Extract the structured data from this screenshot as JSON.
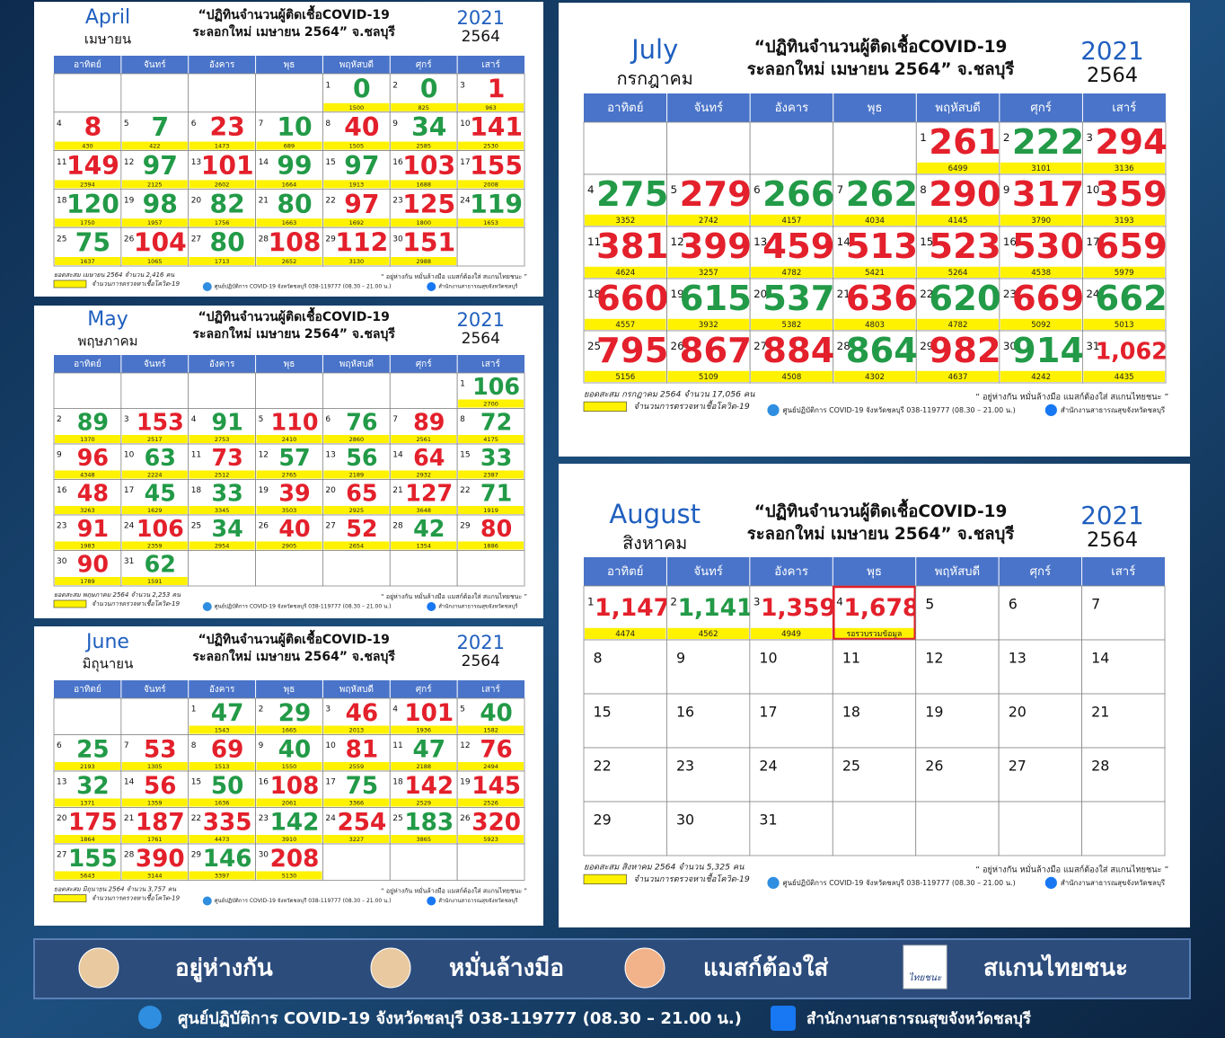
{
  "common": {
    "title_line1": "“ปฏิทินจำนวนผู้ติดเชื้อCOVID-19",
    "title_line2": "ระลอกใหม่ เมษายน 2564” จ.ชลบุรี",
    "year": "2021",
    "year_th": "2564",
    "weekdays": [
      "อาทิตย์",
      "จันทร์",
      "อังคาร",
      "พุธ",
      "พฤหัสบดี",
      "ศุกร์",
      "เสาร์"
    ],
    "legend": "จำนวนการตรวจหาเชื้อโควิด-19",
    "quote": "“ อยู่ห่างกัน หมั่นล้างมือ แมสก์ต้องใส่ สแกนไทยชนะ ”",
    "center": "ศูนย์ปฏิบัติการ COVID-19 จังหวัดชลบุรี 038-119777 (08.30 – 21.00 น.)",
    "facebook": "สำนักงานสาธารณสุขจังหวัดชลบุรี"
  },
  "calendars": [
    {
      "month_en": "April",
      "month_th": "เมษายน",
      "cumulative": "ยอดสะสม เมษายน 2564 จำนวน 2,416 คน",
      "weeks": [
        [
          null,
          null,
          null,
          null,
          [
            1,
            0,
            1500
          ],
          [
            2,
            0,
            825
          ],
          [
            3,
            1,
            963
          ]
        ],
        [
          [
            4,
            8,
            430
          ],
          [
            5,
            7,
            422
          ],
          [
            6,
            23,
            1473
          ],
          [
            7,
            10,
            689
          ],
          [
            8,
            40,
            1505
          ],
          [
            9,
            34,
            2585
          ],
          [
            10,
            141,
            2530
          ]
        ],
        [
          [
            11,
            149,
            2394
          ],
          [
            12,
            97,
            2125
          ],
          [
            13,
            101,
            2602
          ],
          [
            14,
            99,
            1664
          ],
          [
            15,
            97,
            1913
          ],
          [
            16,
            103,
            1688
          ],
          [
            17,
            155,
            2008
          ]
        ],
        [
          [
            18,
            120,
            1750
          ],
          [
            19,
            98,
            1957
          ],
          [
            20,
            82,
            1756
          ],
          [
            21,
            80,
            1663
          ],
          [
            22,
            97,
            1692
          ],
          [
            23,
            125,
            1800
          ],
          [
            24,
            119,
            1653
          ]
        ],
        [
          [
            25,
            75,
            1637
          ],
          [
            26,
            104,
            1065
          ],
          [
            27,
            80,
            1713
          ],
          [
            28,
            108,
            2652
          ],
          [
            29,
            112,
            3130
          ],
          [
            30,
            151,
            2988
          ],
          null
        ]
      ]
    },
    {
      "month_en": "May",
      "month_th": "พฤษภาคม",
      "cumulative": "ยอดสะสม พฤษภาคม 2564 จำนวน 2,253 คน",
      "weeks": [
        [
          null,
          null,
          null,
          null,
          null,
          null,
          [
            1,
            106,
            2700
          ]
        ],
        [
          [
            2,
            89,
            1370
          ],
          [
            3,
            153,
            2517
          ],
          [
            4,
            91,
            2753
          ],
          [
            5,
            110,
            2410
          ],
          [
            6,
            76,
            2860
          ],
          [
            7,
            89,
            2561
          ],
          [
            8,
            72,
            4175
          ]
        ],
        [
          [
            9,
            96,
            4348
          ],
          [
            10,
            63,
            2224
          ],
          [
            11,
            73,
            2512
          ],
          [
            12,
            57,
            2765
          ],
          [
            13,
            56,
            2189
          ],
          [
            14,
            64,
            2932
          ],
          [
            15,
            33,
            2387
          ]
        ],
        [
          [
            16,
            48,
            3263
          ],
          [
            17,
            45,
            1629
          ],
          [
            18,
            33,
            3345
          ],
          [
            19,
            39,
            3503
          ],
          [
            20,
            65,
            2925
          ],
          [
            21,
            127,
            3648
          ],
          [
            22,
            71,
            1919
          ]
        ],
        [
          [
            23,
            91,
            1983
          ],
          [
            24,
            106,
            2359
          ],
          [
            25,
            34,
            2954
          ],
          [
            26,
            40,
            2905
          ],
          [
            27,
            52,
            2654
          ],
          [
            28,
            42,
            1354
          ],
          [
            29,
            80,
            1886
          ]
        ],
        [
          [
            30,
            90,
            1789
          ],
          [
            31,
            62,
            1591
          ],
          null,
          null,
          null,
          null,
          null
        ]
      ]
    },
    {
      "month_en": "June",
      "month_th": "มิถุนายน",
      "cumulative": "ยอดสะสม มิถุนายน 2564 จำนวน 3,757 คน",
      "weeks": [
        [
          null,
          null,
          [
            1,
            47,
            1543
          ],
          [
            2,
            29,
            1665
          ],
          [
            3,
            46,
            2013
          ],
          [
            4,
            101,
            1936
          ],
          [
            5,
            40,
            1582
          ]
        ],
        [
          [
            6,
            25,
            2193
          ],
          [
            7,
            53,
            1305
          ],
          [
            8,
            69,
            1513
          ],
          [
            9,
            40,
            1550
          ],
          [
            10,
            81,
            2559
          ],
          [
            11,
            47,
            2188
          ],
          [
            12,
            76,
            2494
          ]
        ],
        [
          [
            13,
            32,
            1371
          ],
          [
            14,
            56,
            1359
          ],
          [
            15,
            50,
            1636
          ],
          [
            16,
            108,
            2061
          ],
          [
            17,
            75,
            3366
          ],
          [
            18,
            142,
            2529
          ],
          [
            19,
            145,
            2526
          ]
        ],
        [
          [
            20,
            175,
            1864
          ],
          [
            21,
            187,
            1761
          ],
          [
            22,
            335,
            4473
          ],
          [
            23,
            142,
            3910
          ],
          [
            24,
            254,
            3227
          ],
          [
            25,
            183,
            3865
          ],
          [
            26,
            320,
            5923
          ]
        ],
        [
          [
            27,
            155,
            5643
          ],
          [
            28,
            390,
            3144
          ],
          [
            29,
            146,
            3397
          ],
          [
            30,
            208,
            5130
          ],
          null,
          null,
          null
        ]
      ]
    },
    {
      "month_en": "July",
      "month_th": "กรกฎาคม",
      "cumulative": "ยอดสะสม กรกฎาคม 2564 จำนวน 17,056 คน",
      "weeks": [
        [
          null,
          null,
          null,
          null,
          [
            1,
            261,
            6499
          ],
          [
            2,
            222,
            3101
          ],
          [
            3,
            294,
            3136
          ]
        ],
        [
          [
            4,
            275,
            3352
          ],
          [
            5,
            279,
            2742
          ],
          [
            6,
            266,
            4157
          ],
          [
            7,
            262,
            4034
          ],
          [
            8,
            290,
            4145
          ],
          [
            9,
            317,
            3790
          ],
          [
            10,
            359,
            3193
          ]
        ],
        [
          [
            11,
            381,
            4624
          ],
          [
            12,
            399,
            3257
          ],
          [
            13,
            459,
            4782
          ],
          [
            14,
            513,
            5421
          ],
          [
            15,
            523,
            5264
          ],
          [
            16,
            530,
            4538
          ],
          [
            17,
            659,
            5979
          ]
        ],
        [
          [
            18,
            660,
            4557
          ],
          [
            19,
            615,
            3932
          ],
          [
            20,
            537,
            5382
          ],
          [
            21,
            636,
            4803
          ],
          [
            22,
            620,
            4782
          ],
          [
            23,
            669,
            5092
          ],
          [
            24,
            662,
            5013
          ]
        ],
        [
          [
            25,
            795,
            5156
          ],
          [
            26,
            867,
            5109
          ],
          [
            27,
            884,
            4508
          ],
          [
            28,
            864,
            4302
          ],
          [
            29,
            982,
            4637
          ],
          [
            30,
            914,
            4242
          ],
          [
            31,
            "1,062",
            4435
          ]
        ]
      ]
    },
    {
      "month_en": "August",
      "month_th": "สิงหาคม",
      "cumulative": "ยอดสะสม สิงหาคม 2564 จำนวน 5,325 คน",
      "weeks": [
        [
          [
            1,
            "1,147",
            4474
          ],
          [
            2,
            "1,141",
            4562
          ],
          [
            3,
            "1,359",
            4949
          ],
          [
            4,
            "1,678",
            "รอรวบรวมข้อมูล"
          ],
          [
            5
          ],
          [
            6
          ],
          [
            7
          ]
        ],
        [
          [
            8
          ],
          [
            9
          ],
          [
            10
          ],
          [
            11
          ],
          [
            12
          ],
          [
            13
          ],
          [
            14
          ]
        ],
        [
          [
            15
          ],
          [
            16
          ],
          [
            17
          ],
          [
            18
          ],
          [
            19
          ],
          [
            20
          ],
          [
            21
          ]
        ],
        [
          [
            22
          ],
          [
            23
          ],
          [
            24
          ],
          [
            25
          ],
          [
            26
          ],
          [
            27
          ],
          [
            28
          ]
        ],
        [
          [
            29
          ],
          [
            30
          ],
          [
            31
          ],
          null,
          null,
          null,
          null
        ]
      ]
    }
  ],
  "banner": {
    "slogans": [
      "อยู่ห่างกัน",
      "หมั่นล้างมือ",
      "แมสก์ต้องใส่",
      "สแกนไทยชนะ"
    ],
    "app_label": "ไทยชนะ",
    "contact": "ศูนย์ปฏิบัติการ COVID-19 จังหวัดชลบุรี 038-119777 (08.30 – 21.00 น.)",
    "facebook": "สำนักงานสาธารณสุขจังหวัดชลบุรี"
  }
}
